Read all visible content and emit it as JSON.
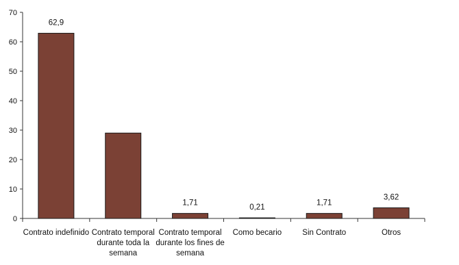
{
  "chart_data": {
    "type": "bar",
    "title": "",
    "xlabel": "",
    "ylabel": "",
    "ylim": [
      0,
      70
    ],
    "yticks": [
      0,
      10,
      20,
      30,
      40,
      50,
      60,
      70
    ],
    "grid": false,
    "categories": [
      [
        "Contrato indefinido"
      ],
      [
        "Contrato temporal",
        "durante toda la",
        "semana"
      ],
      [
        "Contrato temporal",
        "durante los fines de",
        "semana"
      ],
      [
        "Como becario"
      ],
      [
        "Sin Contrato"
      ],
      [
        "Otros"
      ]
    ],
    "values": [
      62.9,
      29,
      1.71,
      0.21,
      1.71,
      3.62
    ],
    "data_labels": [
      "62,9",
      "",
      "1,71",
      "0,21",
      "1,71",
      "3,62"
    ],
    "colors": {
      "bar": "#7b4135",
      "bar_stroke": "#1a1a1a",
      "axis": "#333333"
    }
  }
}
